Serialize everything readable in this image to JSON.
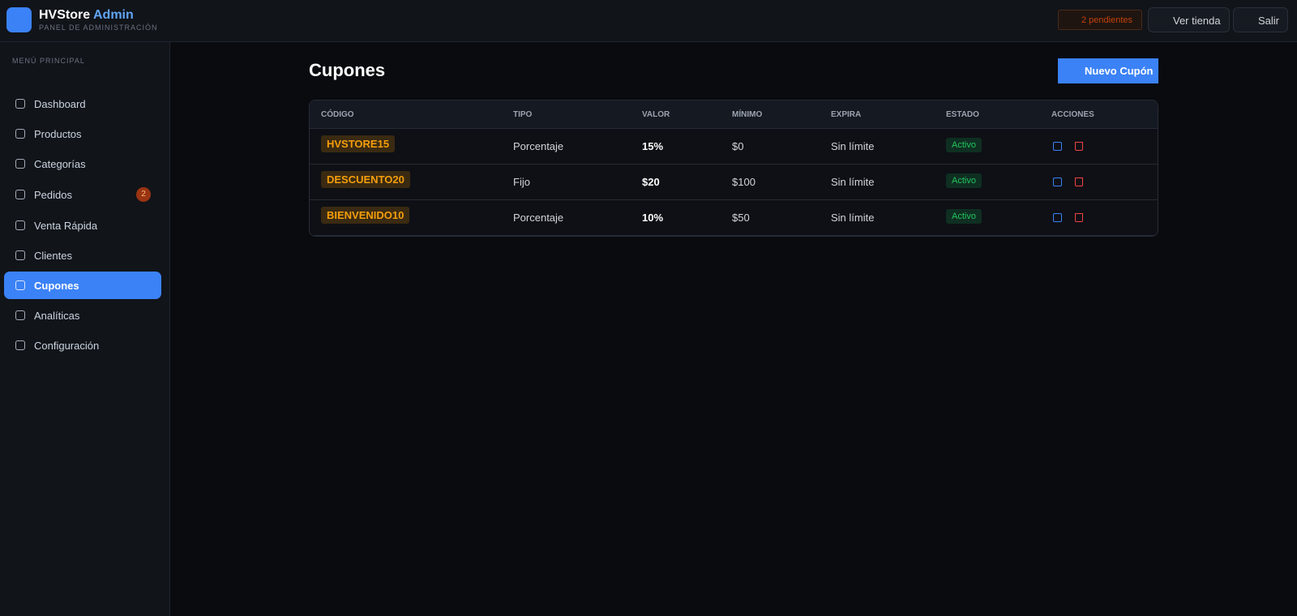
{
  "header": {
    "brand": "HVStore",
    "brand_accent": "Admin",
    "subtitle": "PANEL DE ADMINISTRACIÓN",
    "pending": "2 pendientes",
    "view_store": "Ver tienda",
    "logout": "Salir"
  },
  "sidebar": {
    "section": "MENÚ PRINCIPAL",
    "items": [
      {
        "label": "Dashboard"
      },
      {
        "label": "Productos"
      },
      {
        "label": "Categorías"
      },
      {
        "label": "Pedidos",
        "badge": "2"
      },
      {
        "label": "Venta Rápida"
      },
      {
        "label": "Clientes"
      },
      {
        "label": "Cupones"
      },
      {
        "label": "Analíticas"
      },
      {
        "label": "Configuración"
      }
    ]
  },
  "page": {
    "title": "Cupones",
    "new_button": "Nuevo Cupón"
  },
  "table": {
    "headers": [
      "CÓDIGO",
      "TIPO",
      "VALOR",
      "MÍNIMO",
      "EXPIRA",
      "ESTADO",
      "ACCIONES"
    ],
    "rows": [
      [
        "HVSTORE15",
        "Porcentaje",
        "15%",
        "$0",
        "Sin límite",
        "Activo"
      ],
      [
        "DESCUENTO20",
        "Fijo",
        "$20",
        "$100",
        "Sin límite",
        "Activo"
      ],
      [
        "BIENVENIDO10",
        "Porcentaje",
        "10%",
        "$50",
        "Sin límite",
        "Activo"
      ]
    ]
  }
}
